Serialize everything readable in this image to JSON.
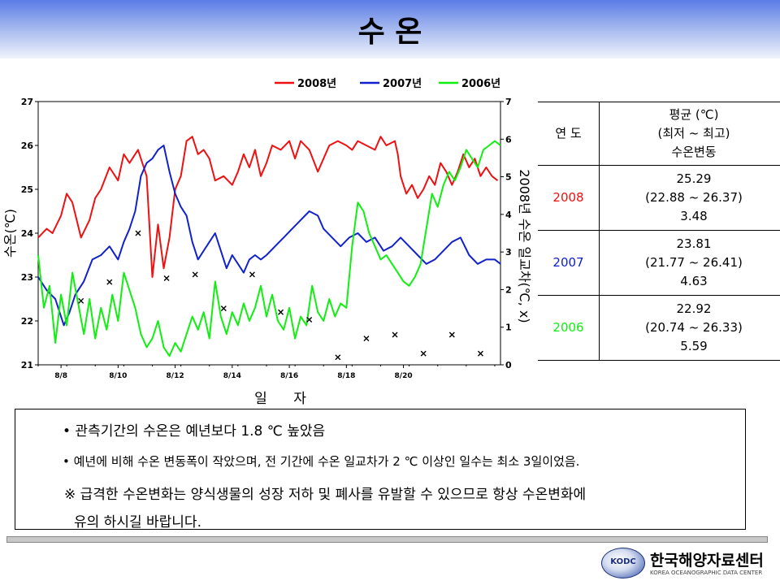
{
  "header": {
    "title": "수 온"
  },
  "chart_data": {
    "type": "line",
    "xlabel": "일 자",
    "ylabel": "수온(℃)",
    "y2label": "2008년 수온 일교차(℃, x)",
    "ylim": [
      21,
      27
    ],
    "y2lim": [
      0,
      7
    ],
    "xlim": [
      0,
      16.2
    ],
    "x_ticks": [
      "8/8",
      "8/10",
      "8/12",
      "8/14",
      "8/16",
      "8/18",
      "8/20"
    ],
    "y_ticks": [
      21,
      22,
      23,
      24,
      25,
      26,
      27
    ],
    "y2_ticks": [
      0,
      1,
      2,
      3,
      4,
      5,
      6,
      7
    ],
    "legend_position": "top",
    "series": [
      {
        "name": "2008년",
        "color": "#ee1111",
        "points": [
          [
            0,
            23.9
          ],
          [
            0.3,
            24.1
          ],
          [
            0.5,
            24.0
          ],
          [
            0.8,
            24.4
          ],
          [
            1,
            24.9
          ],
          [
            1.2,
            24.7
          ],
          [
            1.5,
            23.9
          ],
          [
            1.8,
            24.3
          ],
          [
            2,
            24.8
          ],
          [
            2.2,
            25.0
          ],
          [
            2.5,
            25.5
          ],
          [
            2.8,
            25.2
          ],
          [
            3,
            25.8
          ],
          [
            3.2,
            25.6
          ],
          [
            3.5,
            25.9
          ],
          [
            3.8,
            25.3
          ],
          [
            4,
            23.0
          ],
          [
            4.2,
            24.2
          ],
          [
            4.4,
            23.2
          ],
          [
            4.6,
            23.9
          ],
          [
            4.8,
            25.0
          ],
          [
            5,
            25.3
          ],
          [
            5.2,
            26.1
          ],
          [
            5.4,
            26.2
          ],
          [
            5.6,
            25.8
          ],
          [
            5.8,
            25.9
          ],
          [
            6,
            25.7
          ],
          [
            6.2,
            25.2
          ],
          [
            6.5,
            25.3
          ],
          [
            6.8,
            25.1
          ],
          [
            7,
            25.4
          ],
          [
            7.2,
            25.8
          ],
          [
            7.4,
            25.5
          ],
          [
            7.6,
            25.9
          ],
          [
            7.8,
            25.3
          ],
          [
            8,
            25.6
          ],
          [
            8.2,
            26.0
          ],
          [
            8.5,
            25.9
          ],
          [
            8.8,
            26.1
          ],
          [
            9,
            25.7
          ],
          [
            9.2,
            26.1
          ],
          [
            9.5,
            25.9
          ],
          [
            9.8,
            25.4
          ],
          [
            10,
            25.7
          ],
          [
            10.2,
            26.0
          ],
          [
            10.5,
            26.1
          ],
          [
            10.8,
            26.0
          ],
          [
            11,
            25.9
          ],
          [
            11.2,
            26.1
          ],
          [
            11.5,
            26.0
          ],
          [
            11.8,
            25.9
          ],
          [
            12,
            26.2
          ],
          [
            12.2,
            26.0
          ],
          [
            12.5,
            26.1
          ],
          [
            12.6,
            25.8
          ],
          [
            12.7,
            25.3
          ],
          [
            12.9,
            24.9
          ],
          [
            13.1,
            25.1
          ],
          [
            13.3,
            24.8
          ],
          [
            13.5,
            25.0
          ],
          [
            13.7,
            25.3
          ],
          [
            13.9,
            25.1
          ],
          [
            14.1,
            25.6
          ],
          [
            14.3,
            25.4
          ],
          [
            14.5,
            25.1
          ],
          [
            14.7,
            25.4
          ],
          [
            14.9,
            25.8
          ],
          [
            15.1,
            25.5
          ],
          [
            15.3,
            25.7
          ],
          [
            15.5,
            25.3
          ],
          [
            15.7,
            25.5
          ],
          [
            15.9,
            25.3
          ],
          [
            16.1,
            25.2
          ]
        ]
      },
      {
        "name": "2007년",
        "color": "#1122cc",
        "points": [
          [
            0,
            23.0
          ],
          [
            0.3,
            22.7
          ],
          [
            0.6,
            22.5
          ],
          [
            0.9,
            21.9
          ],
          [
            1.1,
            22.2
          ],
          [
            1.3,
            22.6
          ],
          [
            1.6,
            22.9
          ],
          [
            1.9,
            23.4
          ],
          [
            2.2,
            23.5
          ],
          [
            2.5,
            23.7
          ],
          [
            2.8,
            23.4
          ],
          [
            3,
            23.8
          ],
          [
            3.2,
            24.1
          ],
          [
            3.4,
            24.5
          ],
          [
            3.6,
            25.3
          ],
          [
            3.8,
            25.6
          ],
          [
            4,
            25.7
          ],
          [
            4.2,
            25.9
          ],
          [
            4.4,
            26.0
          ],
          [
            4.6,
            25.4
          ],
          [
            4.8,
            24.9
          ],
          [
            5,
            24.6
          ],
          [
            5.2,
            24.4
          ],
          [
            5.4,
            23.8
          ],
          [
            5.6,
            23.4
          ],
          [
            5.8,
            23.6
          ],
          [
            6,
            23.8
          ],
          [
            6.2,
            24.0
          ],
          [
            6.4,
            23.6
          ],
          [
            6.6,
            23.2
          ],
          [
            6.8,
            23.5
          ],
          [
            7,
            23.3
          ],
          [
            7.2,
            23.1
          ],
          [
            7.4,
            23.4
          ],
          [
            7.6,
            23.5
          ],
          [
            7.8,
            23.4
          ],
          [
            8,
            23.5
          ],
          [
            8.3,
            23.7
          ],
          [
            8.6,
            23.9
          ],
          [
            8.9,
            24.1
          ],
          [
            9.2,
            24.3
          ],
          [
            9.5,
            24.5
          ],
          [
            9.8,
            24.4
          ],
          [
            10,
            24.1
          ],
          [
            10.3,
            23.9
          ],
          [
            10.6,
            23.7
          ],
          [
            10.9,
            23.9
          ],
          [
            11.2,
            24.0
          ],
          [
            11.5,
            23.8
          ],
          [
            11.8,
            23.9
          ],
          [
            12.1,
            23.6
          ],
          [
            12.4,
            23.7
          ],
          [
            12.7,
            23.9
          ],
          [
            13,
            23.7
          ],
          [
            13.3,
            23.5
          ],
          [
            13.6,
            23.3
          ],
          [
            13.9,
            23.4
          ],
          [
            14.2,
            23.6
          ],
          [
            14.5,
            23.8
          ],
          [
            14.8,
            23.9
          ],
          [
            15.1,
            23.5
          ],
          [
            15.4,
            23.3
          ],
          [
            15.7,
            23.4
          ],
          [
            16,
            23.4
          ],
          [
            16.2,
            23.3
          ]
        ]
      },
      {
        "name": "2006년",
        "color": "#11ee11",
        "points": [
          [
            0,
            23.5
          ],
          [
            0.2,
            22.3
          ],
          [
            0.4,
            22.8
          ],
          [
            0.6,
            21.5
          ],
          [
            0.8,
            22.6
          ],
          [
            1,
            21.9
          ],
          [
            1.2,
            23.1
          ],
          [
            1.4,
            22.4
          ],
          [
            1.6,
            21.7
          ],
          [
            1.8,
            22.5
          ],
          [
            2,
            21.6
          ],
          [
            2.2,
            22.3
          ],
          [
            2.4,
            21.8
          ],
          [
            2.6,
            22.6
          ],
          [
            2.8,
            22.0
          ],
          [
            3,
            23.1
          ],
          [
            3.2,
            22.7
          ],
          [
            3.4,
            22.3
          ],
          [
            3.6,
            21.7
          ],
          [
            3.8,
            21.4
          ],
          [
            4,
            21.6
          ],
          [
            4.2,
            22.0
          ],
          [
            4.4,
            21.4
          ],
          [
            4.6,
            21.2
          ],
          [
            4.8,
            21.5
          ],
          [
            5,
            21.3
          ],
          [
            5.2,
            21.7
          ],
          [
            5.4,
            22.1
          ],
          [
            5.6,
            21.8
          ],
          [
            5.8,
            22.2
          ],
          [
            6,
            21.6
          ],
          [
            6.2,
            22.9
          ],
          [
            6.4,
            22.1
          ],
          [
            6.6,
            21.7
          ],
          [
            6.8,
            22.2
          ],
          [
            7,
            21.9
          ],
          [
            7.2,
            22.4
          ],
          [
            7.4,
            22.0
          ],
          [
            7.6,
            22.3
          ],
          [
            7.8,
            22.8
          ],
          [
            8,
            22.1
          ],
          [
            8.2,
            22.6
          ],
          [
            8.4,
            22.0
          ],
          [
            8.6,
            21.8
          ],
          [
            8.8,
            22.3
          ],
          [
            9,
            21.6
          ],
          [
            9.2,
            22.1
          ],
          [
            9.4,
            21.9
          ],
          [
            9.6,
            22.8
          ],
          [
            9.8,
            22.2
          ],
          [
            10,
            22.0
          ],
          [
            10.2,
            22.5
          ],
          [
            10.4,
            22.1
          ],
          [
            10.6,
            22.4
          ],
          [
            10.8,
            22.3
          ],
          [
            11,
            23.7
          ],
          [
            11.2,
            24.7
          ],
          [
            11.4,
            24.5
          ],
          [
            11.6,
            24.0
          ],
          [
            11.8,
            23.7
          ],
          [
            12,
            23.4
          ],
          [
            12.2,
            23.5
          ],
          [
            12.4,
            23.3
          ],
          [
            12.6,
            23.1
          ],
          [
            12.8,
            22.9
          ],
          [
            13,
            22.8
          ],
          [
            13.2,
            23.0
          ],
          [
            13.4,
            23.3
          ],
          [
            13.6,
            24.1
          ],
          [
            13.8,
            24.9
          ],
          [
            14,
            24.6
          ],
          [
            14.2,
            25.1
          ],
          [
            14.4,
            25.4
          ],
          [
            14.6,
            25.2
          ],
          [
            14.8,
            25.5
          ],
          [
            15,
            25.9
          ],
          [
            15.2,
            25.7
          ],
          [
            15.4,
            25.5
          ],
          [
            15.6,
            25.9
          ],
          [
            15.8,
            26.0
          ],
          [
            16,
            26.1
          ],
          [
            16.2,
            26.0
          ]
        ]
      }
    ],
    "markers_2008": {
      "name": "2008년 수온 일교차",
      "symbol": "x",
      "points": [
        [
          1.5,
          1.7
        ],
        [
          2.5,
          2.2
        ],
        [
          3.5,
          3.5
        ],
        [
          4.5,
          2.3
        ],
        [
          5.5,
          2.4
        ],
        [
          6.5,
          1.5
        ],
        [
          7.5,
          2.4
        ],
        [
          8.5,
          1.4
        ],
        [
          9.5,
          1.2
        ],
        [
          10.5,
          0.2
        ],
        [
          11.5,
          0.7
        ],
        [
          12.5,
          0.8
        ],
        [
          13.5,
          0.3
        ],
        [
          14.5,
          0.8
        ],
        [
          15.5,
          0.3
        ]
      ]
    }
  },
  "table": {
    "header_year": "연 도",
    "header_lines": [
      "평균 (℃)",
      "(최저 ~ 최고)",
      "수온변동"
    ],
    "rows": [
      {
        "year": "2008",
        "year_color": "#ee1111",
        "mean": "25.29",
        "range": "(22.88 ~ 26.37)",
        "variation": "3.48"
      },
      {
        "year": "2007",
        "year_color": "#1122cc",
        "mean": "23.81",
        "range": "(21.77 ~ 26.41)",
        "variation": "4.63"
      },
      {
        "year": "2006",
        "year_color": "#11ee11",
        "mean": "22.92",
        "range": "(20.74 ~ 26.33)",
        "variation": "5.59"
      }
    ]
  },
  "notes": {
    "line1": "• 관측기간의 수온은 예년보다 1.8 ℃ 높았음",
    "line2": "• 예년에 비해 수온 변동폭이 작았으며, 전 기간에 수온 일교차가 2 ℃ 이상인 일수는 최소 3일이었음.",
    "line3": "※ 급격한 수온변화는 양식생물의 성장 저하 및 폐사를 유발할 수 있으므로 항상 수온변화에",
    "line4": "유의 하시길 바랍니다."
  },
  "logo": {
    "mark": "KODC",
    "name_ko": "한국해양자료센터",
    "name_en": "KOREA OCEANOGRAPHIC DATA CENTER"
  }
}
